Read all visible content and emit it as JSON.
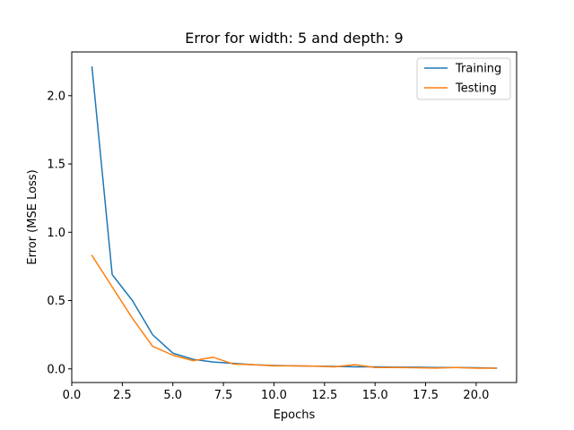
{
  "chart_data": {
    "type": "line",
    "title": "Error for width: 5 and depth: 9",
    "xlabel": "Epochs",
    "ylabel": "Error (MSE Loss)",
    "xlim": [
      0.0,
      22.0
    ],
    "ylim": [
      -0.1,
      2.32
    ],
    "xticks": [
      0.0,
      2.5,
      5.0,
      7.5,
      10.0,
      12.5,
      15.0,
      17.5,
      20.0
    ],
    "xtick_labels": [
      "0.0",
      "2.5",
      "5.0",
      "7.5",
      "10.0",
      "12.5",
      "15.0",
      "17.5",
      "20.0"
    ],
    "yticks": [
      0.0,
      0.5,
      1.0,
      1.5,
      2.0
    ],
    "ytick_labels": [
      "0.0",
      "0.5",
      "1.0",
      "1.5",
      "2.0"
    ],
    "grid": false,
    "legend_position": "top-right",
    "x": [
      1,
      2,
      3,
      4,
      5,
      6,
      7,
      8,
      9,
      10,
      11,
      12,
      13,
      14,
      15,
      16,
      17,
      18,
      19,
      20,
      21
    ],
    "series": [
      {
        "name": "Training",
        "color": "#1f77b4",
        "values": [
          2.21,
          0.69,
          0.5,
          0.25,
          0.115,
          0.07,
          0.05,
          0.04,
          0.03,
          0.025,
          0.022,
          0.02,
          0.018,
          0.015,
          0.015,
          0.012,
          0.012,
          0.01,
          0.01,
          0.008,
          0.005
        ]
      },
      {
        "name": "Testing",
        "color": "#ff7f0e",
        "values": [
          0.83,
          0.6,
          0.37,
          0.165,
          0.1,
          0.06,
          0.085,
          0.035,
          0.03,
          0.022,
          0.022,
          0.02,
          0.015,
          0.03,
          0.01,
          0.01,
          0.008,
          0.006,
          0.01,
          0.005,
          0.005
        ]
      }
    ]
  }
}
